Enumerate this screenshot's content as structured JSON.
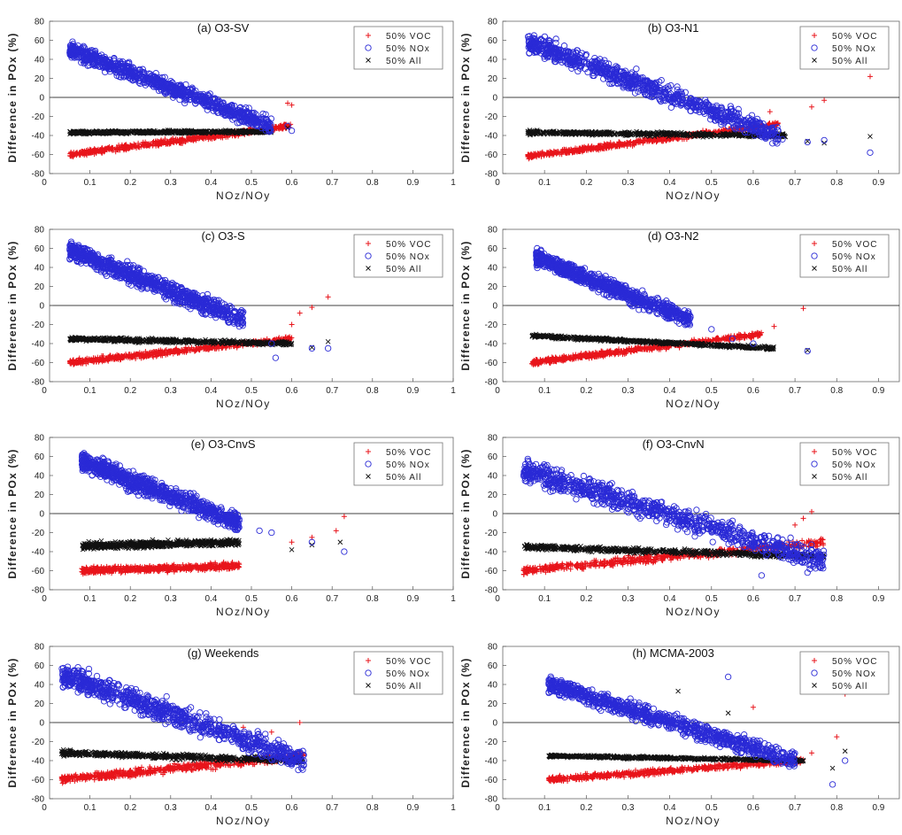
{
  "figure": {
    "ylabel": "Difference in POx (%)",
    "xlabel": "NOz/NOy",
    "legend_labels": {
      "voc": "50% VOC",
      "nox": "50% NOx",
      "all": "50% All"
    },
    "series_colors": {
      "voc": "#e8141b",
      "nox": "#2a2ad6",
      "all": "#111111"
    },
    "y_ticks": [
      -80,
      -60,
      -40,
      -20,
      0,
      20,
      40,
      60,
      80
    ],
    "y_range": [
      -80,
      80
    ],
    "zero_line": true,
    "grid": false,
    "legend_position": "top-right"
  },
  "chart_data": [
    {
      "type": "scatter",
      "title": "(a) O3-SV",
      "x_ticks": [
        "0.1",
        "0.2",
        "0.3",
        "0.4",
        "0.5",
        "0.6",
        "0.7",
        "0.8",
        "0.9",
        "1"
      ],
      "xlim": [
        0,
        1
      ],
      "series": [
        {
          "name": "50% VOC",
          "key": "voc",
          "marker": "plus",
          "trend": {
            "x_range": [
              0.05,
              0.6
            ],
            "y_start": -60,
            "y_end": -30,
            "spread": 8
          },
          "outliers": [
            [
              0.59,
              -6
            ],
            [
              0.6,
              -8
            ],
            [
              0.57,
              -30
            ]
          ]
        },
        {
          "name": "50% NOx",
          "key": "nox",
          "marker": "circle",
          "trend": {
            "x_range": [
              0.05,
              0.55
            ],
            "y_start": 50,
            "y_end": -30,
            "spread": 24
          },
          "outliers": [
            [
              0.59,
              -30
            ],
            [
              0.6,
              -35
            ],
            [
              0.5,
              -20
            ]
          ]
        },
        {
          "name": "50% All",
          "key": "all",
          "marker": "x",
          "trend": {
            "x_range": [
              0.05,
              0.55
            ],
            "y_start": -37,
            "y_end": -36,
            "spread": 5
          },
          "outliers": [
            [
              0.59,
              -32
            ]
          ]
        }
      ]
    },
    {
      "type": "scatter",
      "title": "(b) O3-N1",
      "x_ticks": [
        "0.1",
        "0.2",
        "0.3",
        "0.4",
        "0.5",
        "0.6",
        "0.7",
        "0.8",
        "0.9"
      ],
      "xlim": [
        0,
        0.95
      ],
      "series": [
        {
          "name": "50% VOC",
          "key": "voc",
          "marker": "plus",
          "trend": {
            "x_range": [
              0.06,
              0.66
            ],
            "y_start": -62,
            "y_end": -28,
            "spread": 8
          },
          "outliers": [
            [
              0.88,
              22
            ],
            [
              0.77,
              -3
            ],
            [
              0.74,
              -10
            ],
            [
              0.64,
              -15
            ]
          ]
        },
        {
          "name": "50% NOx",
          "key": "nox",
          "marker": "circle",
          "trend": {
            "x_range": [
              0.06,
              0.66
            ],
            "y_start": 58,
            "y_end": -40,
            "spread": 30
          },
          "outliers": [
            [
              0.88,
              -58
            ],
            [
              0.77,
              -45
            ],
            [
              0.73,
              -47
            ],
            [
              0.67,
              -44
            ]
          ]
        },
        {
          "name": "50% All",
          "key": "all",
          "marker": "x",
          "trend": {
            "x_range": [
              0.06,
              0.68
            ],
            "y_start": -37,
            "y_end": -40,
            "spread": 6
          },
          "outliers": [
            [
              0.88,
              -41
            ],
            [
              0.77,
              -48
            ],
            [
              0.73,
              -46
            ]
          ]
        }
      ]
    },
    {
      "type": "scatter",
      "title": "(c) O3-S",
      "x_ticks": [
        "0.1",
        "0.2",
        "0.3",
        "0.4",
        "0.5",
        "0.6",
        "0.7",
        "0.8",
        "0.9",
        "1"
      ],
      "xlim": [
        0,
        1
      ],
      "series": [
        {
          "name": "50% VOC",
          "key": "voc",
          "marker": "plus",
          "trend": {
            "x_range": [
              0.05,
              0.6
            ],
            "y_start": -60,
            "y_end": -35,
            "spread": 8
          },
          "outliers": [
            [
              0.69,
              9
            ],
            [
              0.65,
              -2
            ],
            [
              0.62,
              -8
            ],
            [
              0.6,
              -20
            ]
          ]
        },
        {
          "name": "50% NOx",
          "key": "nox",
          "marker": "circle",
          "trend": {
            "x_range": [
              0.05,
              0.48
            ],
            "y_start": 58,
            "y_end": -15,
            "spread": 28
          },
          "outliers": [
            [
              0.69,
              -45
            ],
            [
              0.65,
              -45
            ],
            [
              0.56,
              -55
            ],
            [
              0.55,
              -40
            ]
          ]
        },
        {
          "name": "50% All",
          "key": "all",
          "marker": "x",
          "trend": {
            "x_range": [
              0.05,
              0.6
            ],
            "y_start": -35,
            "y_end": -40,
            "spread": 6
          },
          "outliers": [
            [
              0.69,
              -38
            ],
            [
              0.65,
              -44
            ]
          ]
        }
      ]
    },
    {
      "type": "scatter",
      "title": "(d) O3-N2",
      "x_ticks": [
        "0.1",
        "0.2",
        "0.3",
        "0.4",
        "0.5",
        "0.6",
        "0.7",
        "0.8",
        "0.9"
      ],
      "xlim": [
        0,
        0.95
      ],
      "series": [
        {
          "name": "50% VOC",
          "key": "voc",
          "marker": "plus",
          "trend": {
            "x_range": [
              0.07,
              0.62
            ],
            "y_start": -60,
            "y_end": -30,
            "spread": 8
          },
          "outliers": [
            [
              0.72,
              -3
            ],
            [
              0.65,
              -22
            ]
          ]
        },
        {
          "name": "50% NOx",
          "key": "nox",
          "marker": "circle",
          "trend": {
            "x_range": [
              0.08,
              0.45
            ],
            "y_start": 50,
            "y_end": -15,
            "spread": 24
          },
          "outliers": [
            [
              0.73,
              -48
            ],
            [
              0.6,
              -40
            ],
            [
              0.55,
              -35
            ],
            [
              0.5,
              -25
            ]
          ]
        },
        {
          "name": "50% All",
          "key": "all",
          "marker": "x",
          "trend": {
            "x_range": [
              0.07,
              0.65
            ],
            "y_start": -32,
            "y_end": -45,
            "spread": 5
          },
          "outliers": [
            [
              0.73,
              -47
            ]
          ]
        }
      ]
    },
    {
      "type": "scatter",
      "title": "(e) O3-CnvS",
      "x_ticks": [
        "0.1",
        "0.2",
        "0.3",
        "0.4",
        "0.5",
        "0.6",
        "0.7",
        "0.8",
        "0.9",
        "1"
      ],
      "xlim": [
        0,
        1
      ],
      "series": [
        {
          "name": "50% VOC",
          "key": "voc",
          "marker": "plus",
          "trend": {
            "x_range": [
              0.08,
              0.47
            ],
            "y_start": -60,
            "y_end": -55,
            "spread": 10
          },
          "outliers": [
            [
              0.73,
              -3
            ],
            [
              0.71,
              -18
            ],
            [
              0.65,
              -25
            ],
            [
              0.6,
              -30
            ]
          ]
        },
        {
          "name": "50% NOx",
          "key": "nox",
          "marker": "circle",
          "trend": {
            "x_range": [
              0.08,
              0.47
            ],
            "y_start": 55,
            "y_end": -10,
            "spread": 28
          },
          "outliers": [
            [
              0.73,
              -40
            ],
            [
              0.65,
              -30
            ],
            [
              0.55,
              -20
            ],
            [
              0.52,
              -18
            ]
          ]
        },
        {
          "name": "50% All",
          "key": "all",
          "marker": "x",
          "trend": {
            "x_range": [
              0.08,
              0.47
            ],
            "y_start": -34,
            "y_end": -30,
            "spread": 10
          },
          "outliers": [
            [
              0.72,
              -30
            ],
            [
              0.65,
              -33
            ],
            [
              0.6,
              -38
            ]
          ]
        }
      ]
    },
    {
      "type": "scatter",
      "title": "(f) O3-CnvN",
      "x_ticks": [
        "0.1",
        "0.2",
        "0.3",
        "0.4",
        "0.5",
        "0.6",
        "0.7",
        "0.8",
        "0.9"
      ],
      "xlim": [
        0,
        0.95
      ],
      "series": [
        {
          "name": "50% VOC",
          "key": "voc",
          "marker": "plus",
          "trend": {
            "x_range": [
              0.05,
              0.77
            ],
            "y_start": -60,
            "y_end": -30,
            "spread": 12
          },
          "outliers": [
            [
              0.74,
              2
            ],
            [
              0.72,
              -5
            ],
            [
              0.7,
              -12
            ]
          ]
        },
        {
          "name": "50% NOx",
          "key": "nox",
          "marker": "circle",
          "trend": {
            "x_range": [
              0.05,
              0.77
            ],
            "y_start": 45,
            "y_end": -50,
            "spread": 34
          },
          "outliers": [
            [
              0.73,
              -62
            ],
            [
              0.62,
              -65
            ],
            [
              0.76,
              -55
            ]
          ]
        },
        {
          "name": "50% All",
          "key": "all",
          "marker": "x",
          "trend": {
            "x_range": [
              0.05,
              0.77
            ],
            "y_start": -35,
            "y_end": -45,
            "spread": 8
          },
          "outliers": []
        }
      ]
    },
    {
      "type": "scatter",
      "title": "(g) Weekends",
      "x_ticks": [
        "0.1",
        "0.2",
        "0.3",
        "0.4",
        "0.5",
        "0.6",
        "0.7",
        "0.8",
        "0.9",
        "1"
      ],
      "xlim": [
        0,
        1
      ],
      "series": [
        {
          "name": "50% VOC",
          "key": "voc",
          "marker": "plus",
          "trend": {
            "x_range": [
              0.03,
              0.63
            ],
            "y_start": -60,
            "y_end": -35,
            "spread": 12
          },
          "outliers": [
            [
              0.62,
              0
            ],
            [
              0.55,
              -10
            ],
            [
              0.48,
              -5
            ]
          ]
        },
        {
          "name": "50% NOx",
          "key": "nox",
          "marker": "circle",
          "trend": {
            "x_range": [
              0.03,
              0.63
            ],
            "y_start": 50,
            "y_end": -40,
            "spread": 34
          },
          "outliers": [
            [
              0.63,
              -40
            ],
            [
              0.58,
              -30
            ]
          ]
        },
        {
          "name": "50% All",
          "key": "all",
          "marker": "x",
          "trend": {
            "x_range": [
              0.03,
              0.63
            ],
            "y_start": -32,
            "y_end": -40,
            "spread": 8
          },
          "outliers": []
        }
      ]
    },
    {
      "type": "scatter",
      "title": "(h) MCMA-2003",
      "x_ticks": [
        "0.1",
        "0.2",
        "0.3",
        "0.4",
        "0.5",
        "0.6",
        "0.7",
        "0.8",
        "0.9"
      ],
      "xlim": [
        0,
        0.95
      ],
      "series": [
        {
          "name": "50% VOC",
          "key": "voc",
          "marker": "plus",
          "trend": {
            "x_range": [
              0.11,
              0.72
            ],
            "y_start": -60,
            "y_end": -40,
            "spread": 8
          },
          "outliers": [
            [
              0.82,
              30
            ],
            [
              0.6,
              16
            ],
            [
              0.8,
              -15
            ],
            [
              0.74,
              -32
            ]
          ]
        },
        {
          "name": "50% NOx",
          "key": "nox",
          "marker": "circle",
          "trend": {
            "x_range": [
              0.11,
              0.7
            ],
            "y_start": 40,
            "y_end": -40,
            "spread": 26
          },
          "outliers": [
            [
              0.54,
              48
            ],
            [
              0.79,
              -65
            ],
            [
              0.82,
              -40
            ]
          ]
        },
        {
          "name": "50% All",
          "key": "all",
          "marker": "x",
          "trend": {
            "x_range": [
              0.11,
              0.72
            ],
            "y_start": -35,
            "y_end": -40,
            "spread": 4
          },
          "outliers": [
            [
              0.42,
              33
            ],
            [
              0.54,
              10
            ],
            [
              0.82,
              -30
            ],
            [
              0.79,
              -48
            ]
          ]
        }
      ]
    }
  ]
}
